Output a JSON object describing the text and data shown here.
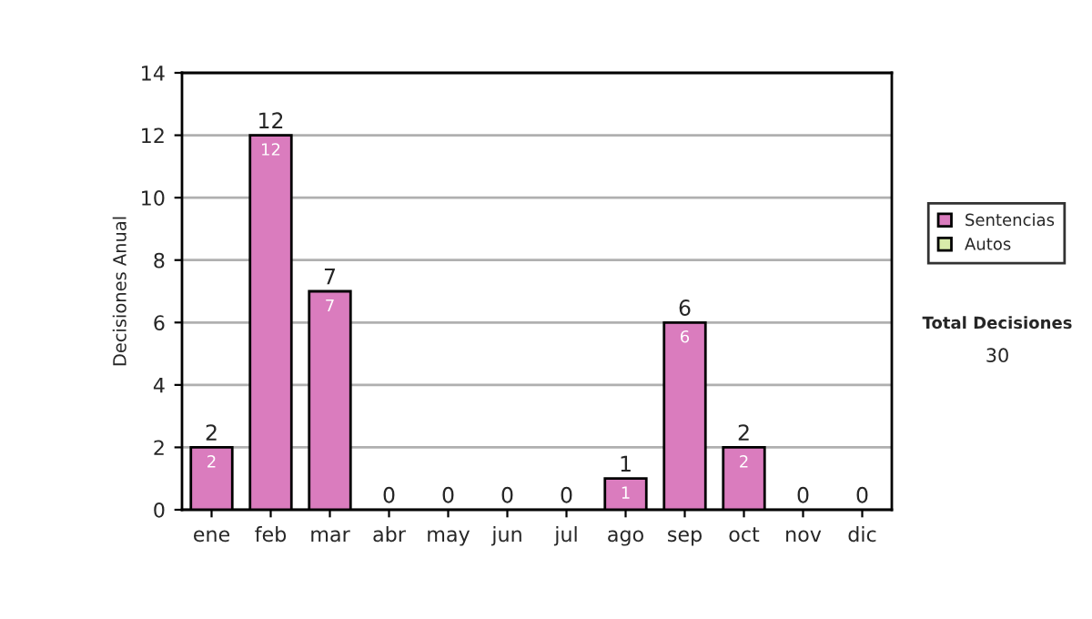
{
  "chart_data": {
    "type": "bar",
    "stacked": true,
    "ylabel": "Decisiones Anual",
    "categories": [
      "ene",
      "feb",
      "mar",
      "abr",
      "may",
      "jun",
      "jul",
      "ago",
      "sep",
      "oct",
      "nov",
      "dic"
    ],
    "series": [
      {
        "name": "Sentencias",
        "color": "#da7cbe",
        "values": [
          2,
          12,
          7,
          0,
          0,
          0,
          0,
          1,
          6,
          2,
          0,
          0
        ],
        "value_labels": [
          "2",
          "12",
          "7",
          null,
          null,
          null,
          null,
          "1",
          "6",
          "2",
          null,
          null
        ]
      },
      {
        "name": "Autos",
        "color": "#d8ecaa",
        "values": [
          0,
          0,
          0,
          0,
          0,
          0,
          0,
          0,
          0,
          0,
          0,
          0
        ]
      }
    ],
    "totals": [
      "2",
      "12",
      "7",
      "0",
      "0",
      "0",
      "0",
      "1",
      "6",
      "2",
      "0",
      "0"
    ],
    "ylim": [
      0,
      14
    ],
    "yticks": [
      0,
      2,
      4,
      6,
      8,
      10,
      12,
      14
    ],
    "grid": "y",
    "legend": "right",
    "annotations": [
      "Total Decisiones",
      "30"
    ]
  }
}
